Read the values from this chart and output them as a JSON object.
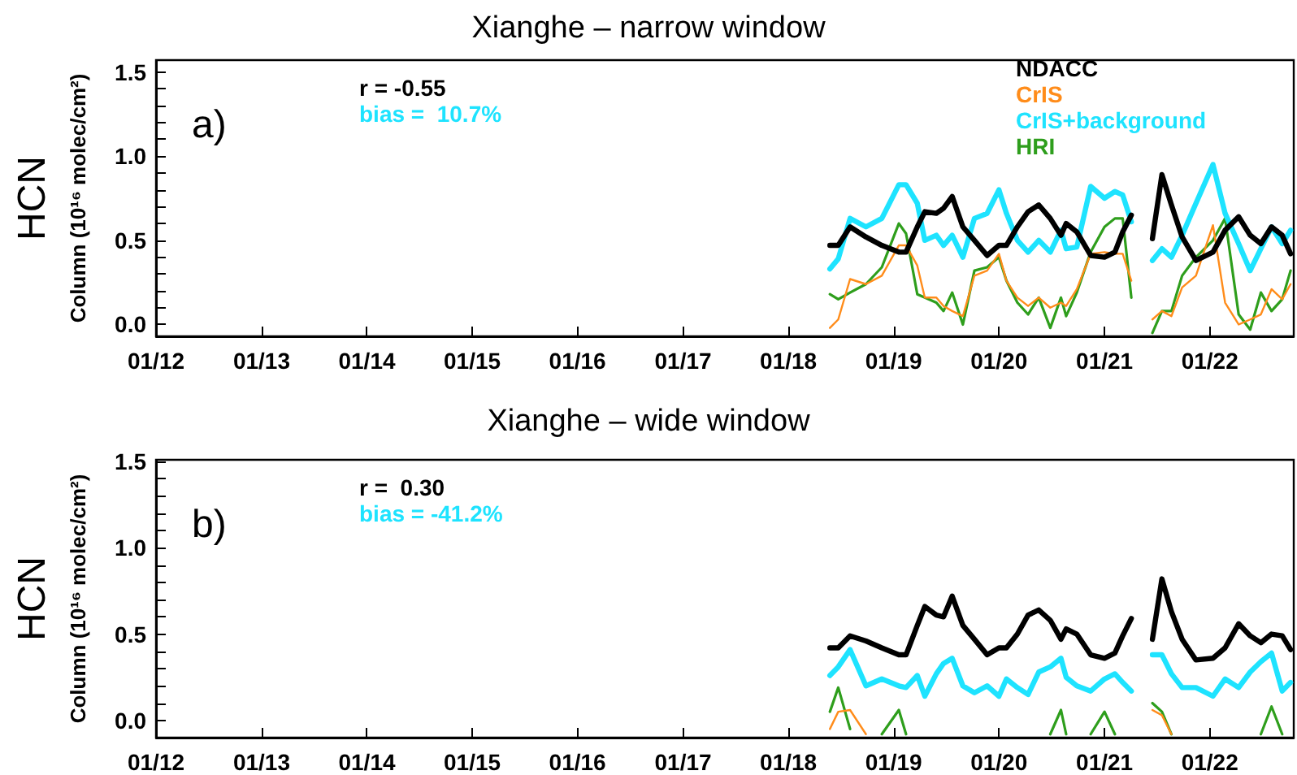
{
  "chart_data": [
    {
      "type": "line",
      "title": "Xianghe – narrow window",
      "ylabel": "HCN\nColumn (10¹⁶ molec/cm²)",
      "annotations": [
        "a)",
        "r = -0.55",
        "bias =  10.7%"
      ],
      "x": [
        "2018-05-25",
        "2018-06-23",
        "2018-08-03",
        "2018-09-27",
        "2018-11-21",
        "2019-01-19",
        "2019-02-13",
        "2019-03-24",
        "2019-04-19",
        "2019-05-29",
        "2019-06-23",
        "2019-07-23",
        "2019-08-29",
        "2019-10-08",
        "2019-11-21",
        "2020-01-01",
        "2020-01-27",
        "2020-03-05",
        "2020-04-11",
        "2020-05-18",
        "2020-06-27",
        "2020-08-03",
        "2020-08-21",
        "2020-09-27",
        "2020-11-14",
        "2021-01-01",
        "2021-02-06",
        "2021-03-05",
        "2021-04-04",
        "2021-05-10",
        "2021-06-16",
        "2021-07-19",
        "2021-08-21",
        "2021-09-27",
        "2021-11-14",
        "2022-01-12",
        "2022-02-23",
        "2022-04-11",
        "2022-05-21",
        "2022-06-27",
        "2022-08-03",
        "2022-09-09",
        "2022-10-08"
      ],
      "series": [
        {
          "name": "NDACC",
          "color": "#000000",
          "values": [
            0.47,
            0.47,
            0.58,
            0.52,
            0.47,
            0.43,
            0.43,
            0.58,
            0.67,
            0.66,
            0.69,
            0.76,
            0.58,
            0.5,
            0.41,
            0.47,
            0.47,
            0.58,
            0.67,
            0.71,
            0.63,
            0.53,
            0.6,
            0.55,
            0.41,
            0.4,
            0.43,
            0.55,
            0.65,
            null,
            0.51,
            0.89,
            0.71,
            0.52,
            0.38,
            0.43,
            0.56,
            0.64,
            0.53,
            0.48,
            0.58,
            0.53,
            0.42
          ]
        },
        {
          "name": "CrIS",
          "color": "#ff8c1a",
          "values": [
            -0.02,
            0.03,
            0.27,
            0.24,
            0.29,
            0.47,
            0.47,
            0.35,
            0.16,
            0.16,
            0.11,
            0.08,
            0.05,
            0.29,
            0.32,
            0.42,
            0.26,
            0.16,
            0.11,
            0.16,
            0.1,
            0.13,
            0.11,
            0.21,
            0.42,
            0.43,
            0.42,
            0.42,
            0.26,
            null,
            0.03,
            0.08,
            0.05,
            0.22,
            0.29,
            0.59,
            0.13,
            0.0,
            0.03,
            0.06,
            0.21,
            0.15,
            0.24
          ]
        },
        {
          "name": "CrIS+background",
          "color": "#1ee3ff",
          "values": [
            0.33,
            0.39,
            0.63,
            0.58,
            0.63,
            0.83,
            0.83,
            0.72,
            0.5,
            0.53,
            0.47,
            0.53,
            0.4,
            0.63,
            0.66,
            0.8,
            0.66,
            0.5,
            0.43,
            0.5,
            0.43,
            0.56,
            0.45,
            0.46,
            0.82,
            0.75,
            0.79,
            0.77,
            0.61,
            null,
            0.38,
            0.45,
            0.4,
            0.53,
            0.72,
            0.95,
            0.66,
            0.48,
            0.32,
            0.45,
            0.58,
            0.48,
            0.56
          ]
        },
        {
          "name": "HRI",
          "color": "#2e9e1c",
          "values": [
            0.18,
            0.15,
            0.19,
            0.24,
            0.34,
            0.6,
            0.54,
            0.18,
            0.16,
            0.13,
            0.08,
            0.19,
            0.0,
            0.32,
            0.34,
            0.4,
            0.26,
            0.13,
            0.06,
            0.16,
            -0.02,
            0.16,
            0.05,
            0.19,
            0.43,
            0.58,
            0.63,
            0.63,
            0.16,
            null,
            -0.05,
            0.08,
            0.08,
            0.29,
            0.4,
            0.5,
            0.63,
            0.06,
            -0.03,
            0.19,
            0.08,
            0.15,
            0.32
          ]
        }
      ],
      "xlim": [
        "2012-01-01",
        "2022-10-19"
      ],
      "xticks": [
        {
          "value": "2012-01",
          "label": "01/12"
        },
        {
          "value": "2013-01",
          "label": "01/13"
        },
        {
          "value": "2014-01",
          "label": "01/14"
        },
        {
          "value": "2015-01",
          "label": "01/15"
        },
        {
          "value": "2016-01",
          "label": "01/16"
        },
        {
          "value": "2017-01",
          "label": "01/17"
        },
        {
          "value": "2018-01",
          "label": "01/18"
        },
        {
          "value": "2019-01",
          "label": "01/19"
        },
        {
          "value": "2020-01",
          "label": "01/20"
        },
        {
          "value": "2021-01",
          "label": "01/21"
        },
        {
          "value": "2022-01",
          "label": "01/22"
        }
      ],
      "ylim": [
        -0.07,
        1.57
      ],
      "yticks": [
        {
          "value": 0,
          "label": "0.0"
        },
        {
          "value": 0.1,
          "label": null
        },
        {
          "value": 0.2,
          "label": null
        },
        {
          "value": 0.3,
          "label": null
        },
        {
          "value": 0.4,
          "label": null
        },
        {
          "value": 0.5,
          "label": "0.5"
        },
        {
          "value": 0.6,
          "label": null
        },
        {
          "value": 0.7,
          "label": null
        },
        {
          "value": 0.8,
          "label": null
        },
        {
          "value": 0.9,
          "label": null
        },
        {
          "value": 1,
          "label": "1.0"
        },
        {
          "value": 1.1,
          "label": null
        },
        {
          "value": 1.2,
          "label": null
        },
        {
          "value": 1.3,
          "label": null
        },
        {
          "value": 1.4,
          "label": null
        },
        {
          "value": 1.5,
          "label": "1.5"
        }
      ],
      "legend": "top right",
      "grid": false,
      "marker": "none",
      "line_style": "solid"
    },
    {
      "type": "line",
      "title": "Xianghe – wide window",
      "ylabel": "HCN\nColumn (10¹⁶ molec/cm²)",
      "annotations": [
        "b)",
        "r =  0.30",
        "bias = -41.2%"
      ],
      "x": [
        "2018-05-25",
        "2018-06-23",
        "2018-08-03",
        "2018-09-27",
        "2018-11-21",
        "2019-01-19",
        "2019-02-13",
        "2019-03-24",
        "2019-04-19",
        "2019-05-29",
        "2019-06-23",
        "2019-07-23",
        "2019-08-29",
        "2019-10-08",
        "2019-11-21",
        "2020-01-01",
        "2020-01-27",
        "2020-03-05",
        "2020-04-11",
        "2020-05-18",
        "2020-06-27",
        "2020-08-03",
        "2020-08-21",
        "2020-09-27",
        "2020-11-14",
        "2021-01-01",
        "2021-02-06",
        "2021-03-05",
        "2021-04-04",
        "2021-05-10",
        "2021-06-16",
        "2021-07-19",
        "2021-08-21",
        "2021-09-27",
        "2021-11-14",
        "2022-01-12",
        "2022-02-23",
        "2022-04-11",
        "2022-05-21",
        "2022-06-27",
        "2022-08-03",
        "2022-09-09",
        "2022-10-08"
      ],
      "series": [
        {
          "color": "#000000",
          "values": [
            0.42,
            0.42,
            0.49,
            0.46,
            0.42,
            0.38,
            0.38,
            0.55,
            0.66,
            0.61,
            0.6,
            0.72,
            0.55,
            0.47,
            0.38,
            0.42,
            0.42,
            0.5,
            0.61,
            0.64,
            0.58,
            0.47,
            0.53,
            0.5,
            0.38,
            0.36,
            0.39,
            0.49,
            0.59,
            null,
            0.47,
            0.82,
            0.63,
            0.47,
            0.35,
            0.36,
            0.42,
            0.56,
            0.49,
            0.45,
            0.5,
            0.49,
            0.41
          ]
        },
        {
          "color": "#ff8c1a",
          "values": [
            -0.05,
            0.05,
            0.06,
            -0.08,
            null,
            null,
            null,
            null,
            null,
            null,
            null,
            null,
            null,
            null,
            null,
            null,
            null,
            null,
            null,
            null,
            null,
            null,
            null,
            null,
            null,
            null,
            null,
            null,
            null,
            null,
            0.06,
            0.03,
            -0.08,
            null,
            null,
            null,
            null,
            null,
            null,
            null,
            null,
            null,
            null
          ]
        },
        {
          "color": "#1ee3ff",
          "values": [
            0.26,
            0.31,
            0.41,
            0.2,
            0.24,
            0.2,
            0.19,
            0.26,
            0.14,
            0.27,
            0.33,
            0.36,
            0.2,
            0.16,
            0.2,
            0.14,
            0.24,
            0.19,
            0.15,
            0.28,
            0.31,
            0.36,
            0.25,
            0.2,
            0.17,
            0.24,
            0.27,
            0.22,
            0.17,
            null,
            0.38,
            0.38,
            0.27,
            0.19,
            0.19,
            0.14,
            0.24,
            0.19,
            0.28,
            0.34,
            0.39,
            0.17,
            0.22
          ]
        },
        {
          "color": "#2e9e1c",
          "values": [
            0.05,
            0.19,
            -0.05,
            null,
            -0.08,
            0.06,
            -0.08,
            null,
            null,
            null,
            null,
            null,
            null,
            null,
            null,
            null,
            null,
            null,
            null,
            null,
            -0.08,
            0.06,
            -0.08,
            null,
            -0.08,
            0.05,
            -0.08,
            null,
            null,
            null,
            0.1,
            0.05,
            -0.08,
            null,
            null,
            null,
            null,
            null,
            null,
            -0.08,
            0.08,
            -0.08,
            null
          ]
        }
      ],
      "xlim": [
        "2012-01-01",
        "2022-10-19"
      ],
      "xticks": [
        {
          "value": "2012-01",
          "label": "01/12"
        },
        {
          "value": "2013-01",
          "label": "01/13"
        },
        {
          "value": "2014-01",
          "label": "01/14"
        },
        {
          "value": "2015-01",
          "label": "01/15"
        },
        {
          "value": "2016-01",
          "label": "01/16"
        },
        {
          "value": "2017-01",
          "label": "01/17"
        },
        {
          "value": "2018-01",
          "label": "01/18"
        },
        {
          "value": "2019-01",
          "label": "01/19"
        },
        {
          "value": "2020-01",
          "label": "01/20"
        },
        {
          "value": "2021-01",
          "label": "01/21"
        },
        {
          "value": "2022-01",
          "label": "01/22"
        }
      ],
      "ylim": [
        -0.1,
        1.51
      ],
      "yticks": [
        {
          "value": 0,
          "label": "0.0"
        },
        {
          "value": 0.1,
          "label": null
        },
        {
          "value": 0.2,
          "label": null
        },
        {
          "value": 0.3,
          "label": null
        },
        {
          "value": 0.4,
          "label": null
        },
        {
          "value": 0.5,
          "label": "0.5"
        },
        {
          "value": 0.6,
          "label": null
        },
        {
          "value": 0.7,
          "label": null
        },
        {
          "value": 0.8,
          "label": null
        },
        {
          "value": 0.9,
          "label": null
        },
        {
          "value": 1,
          "label": "1.0"
        },
        {
          "value": 1.1,
          "label": null
        },
        {
          "value": 1.2,
          "label": null
        },
        {
          "value": 1.3,
          "label": null
        },
        {
          "value": 1.4,
          "label": null
        },
        {
          "value": 1.5,
          "label": "1.5"
        }
      ],
      "grid": false,
      "marker": "none",
      "line_style": "solid"
    }
  ]
}
